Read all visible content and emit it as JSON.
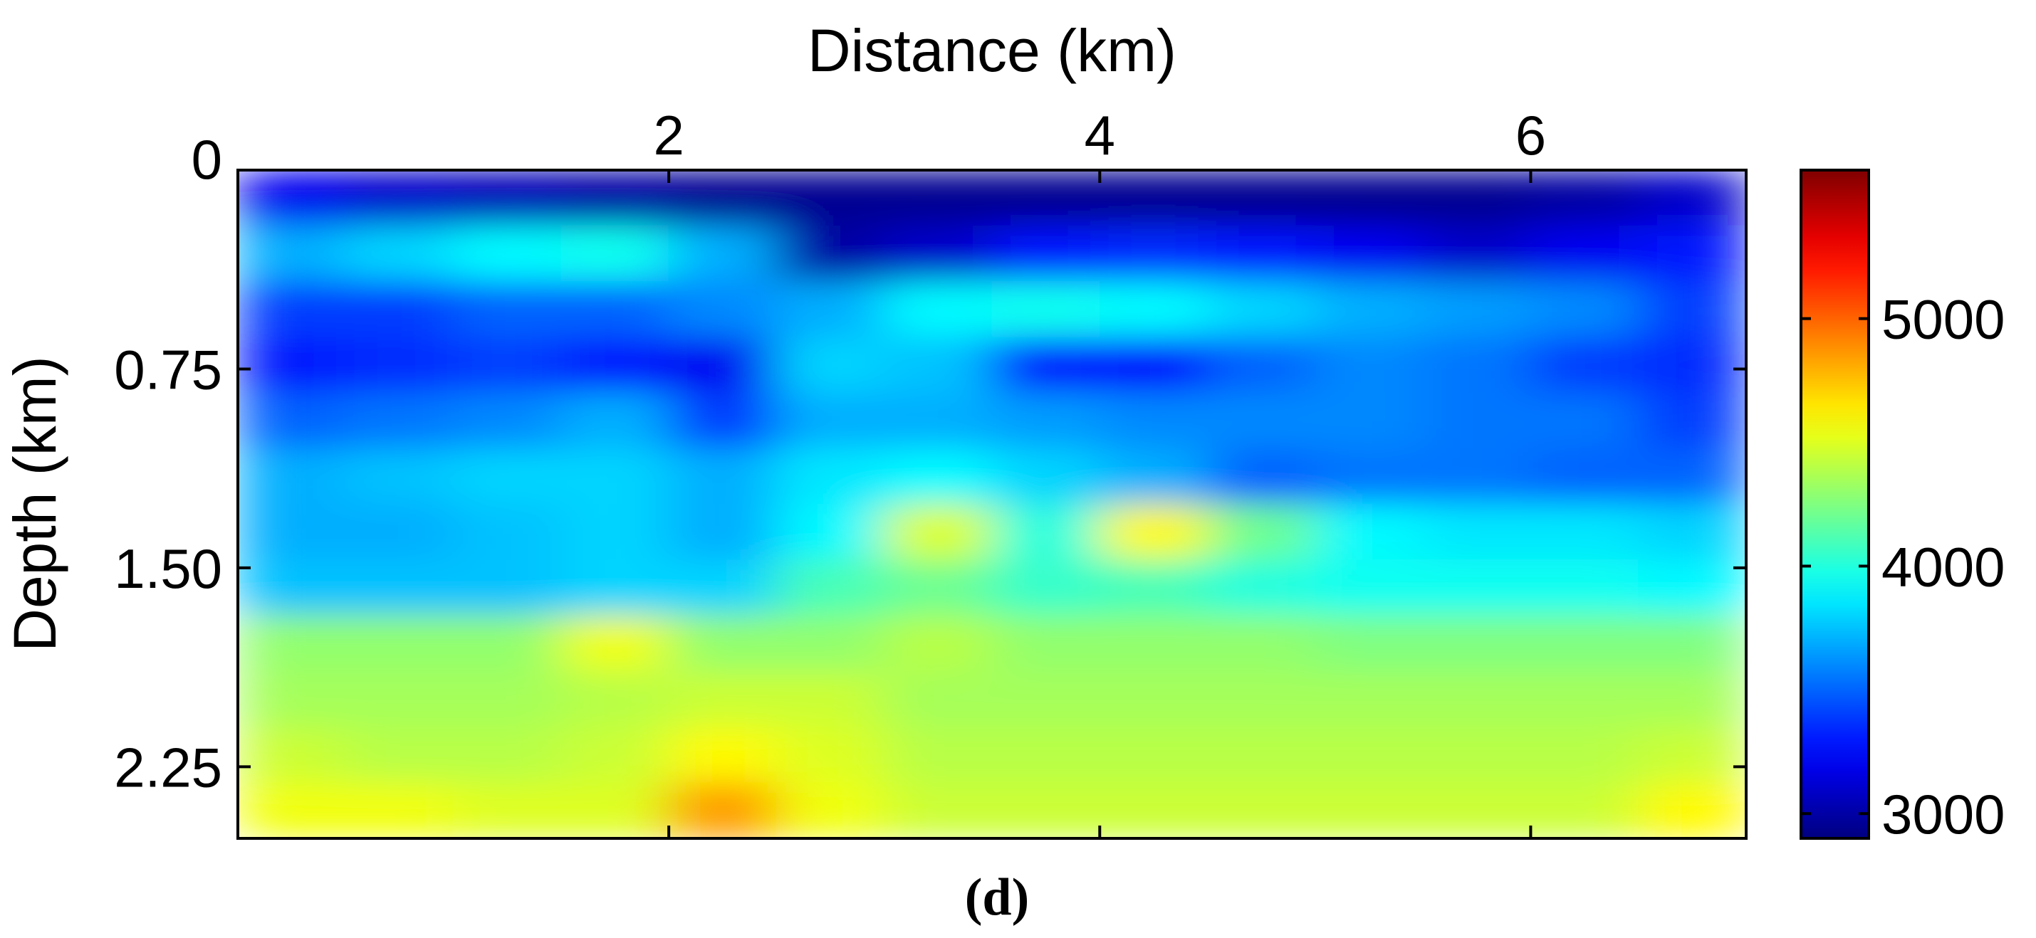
{
  "chart_data": {
    "type": "heatmap",
    "title": "",
    "xlabel": "Distance (km)",
    "ylabel": "Depth (km)",
    "xaxis_position": "top",
    "xlim": [
      0,
      7
    ],
    "ylim": [
      2.52,
      0
    ],
    "xticks": [
      2,
      4,
      6
    ],
    "xtick_labels": [
      "2",
      "4",
      "6"
    ],
    "yticks": [
      0,
      0.75,
      1.5,
      2.25
    ],
    "ytick_labels": [
      "0",
      "0.75",
      "1.50",
      "2.25"
    ],
    "colormap": "jet",
    "colorbar": {
      "range": [
        2900,
        5600
      ],
      "ticks": [
        3000,
        4000,
        5000
      ],
      "tick_labels": [
        "3000",
        "4000",
        "5000"
      ],
      "placement": "right"
    },
    "x_centers_km": [
      0.25,
      0.75,
      1.25,
      1.75,
      2.25,
      2.75,
      3.25,
      3.75,
      4.25,
      4.75,
      5.25,
      5.75,
      6.25,
      6.75
    ],
    "depth_centers_km": [
      0.105,
      0.315,
      0.525,
      0.735,
      0.945,
      1.155,
      1.365,
      1.575,
      1.785,
      1.995,
      2.205,
      2.415
    ],
    "values": [
      [
        3200,
        3100,
        3050,
        3000,
        2950,
        2950,
        2950,
        2950,
        2950,
        2950,
        2950,
        2950,
        3000,
        3100
      ],
      [
        3700,
        3800,
        3900,
        3950,
        3700,
        3000,
        3100,
        3300,
        3350,
        3300,
        3200,
        3100,
        3200,
        3300
      ],
      [
        3400,
        3400,
        3500,
        3500,
        3600,
        3700,
        3900,
        3950,
        3900,
        3800,
        3700,
        3650,
        3600,
        3400
      ],
      [
        3300,
        3350,
        3400,
        3300,
        3200,
        3800,
        3750,
        3300,
        3250,
        3500,
        3600,
        3550,
        3400,
        3350
      ],
      [
        3500,
        3550,
        3600,
        3700,
        3400,
        3700,
        3700,
        3650,
        3600,
        3600,
        3600,
        3550,
        3550,
        3400
      ],
      [
        3700,
        3750,
        3800,
        3800,
        3700,
        3850,
        3900,
        3800,
        3700,
        3500,
        3550,
        3550,
        3500,
        3500
      ],
      [
        3700,
        3700,
        3750,
        3800,
        3700,
        3900,
        4500,
        4000,
        4600,
        4200,
        3900,
        3850,
        3850,
        3800
      ],
      [
        3750,
        3750,
        3750,
        3800,
        3800,
        4100,
        4200,
        4050,
        4100,
        4000,
        3950,
        3950,
        3950,
        3900
      ],
      [
        4300,
        4300,
        4300,
        4550,
        4300,
        4300,
        4400,
        4300,
        4300,
        4300,
        4250,
        4250,
        4250,
        4250
      ],
      [
        4350,
        4350,
        4350,
        4400,
        4450,
        4450,
        4350,
        4350,
        4350,
        4350,
        4350,
        4350,
        4350,
        4350
      ],
      [
        4450,
        4400,
        4400,
        4450,
        4600,
        4500,
        4400,
        4400,
        4400,
        4400,
        4400,
        4400,
        4400,
        4450
      ],
      [
        4550,
        4550,
        4500,
        4500,
        4850,
        4550,
        4450,
        4450,
        4450,
        4450,
        4450,
        4450,
        4450,
        4600
      ]
    ]
  },
  "caption": "(d)"
}
